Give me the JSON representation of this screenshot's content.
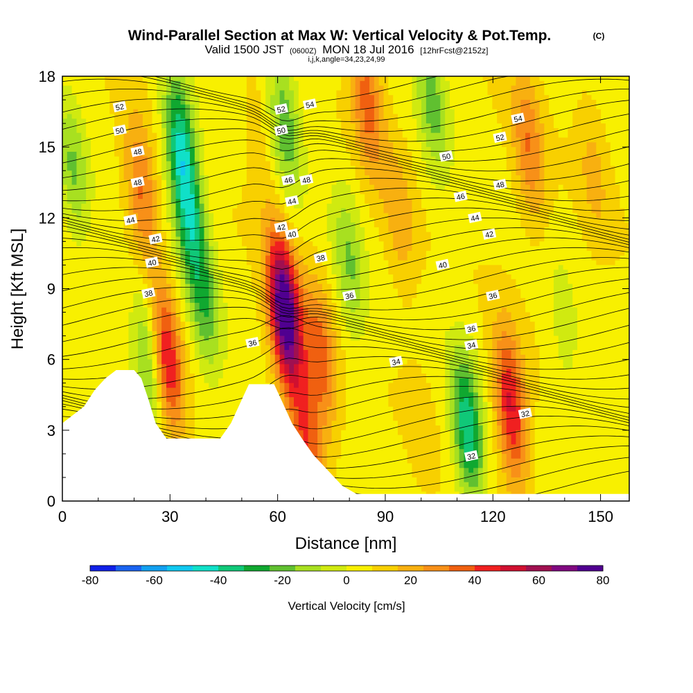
{
  "chart_data": {
    "type": "heatmap",
    "title": "Wind-Parallel Section at Max W: Vertical Velocity & Pot.Temp.",
    "copyright": "(C)",
    "subtitle_valid": "Valid 1500 JST",
    "subtitle_utc": "(0600Z)",
    "subtitle_date": "MON 18 Jul 2016",
    "subtitle_fcst": "[12hrFcst@2152z]",
    "subtitle2": "i,j,k,angle=34,23,24,99",
    "xlabel": "Distance [nm]",
    "ylabel": "Height [Kft MSL]",
    "xlim": [
      0,
      158
    ],
    "ylim": [
      0,
      18
    ],
    "x_ticks": [
      "0",
      "30",
      "60",
      "90",
      "120",
      "150"
    ],
    "y_ticks": [
      "0",
      "3",
      "6",
      "9",
      "12",
      "15",
      "18"
    ],
    "colorbar": {
      "label": "Vertical Velocity [cm/s]",
      "range": [
        -80,
        80
      ],
      "tick_labels": [
        "-80",
        "-60",
        "-40",
        "-20",
        "0",
        "20",
        "40",
        "60",
        "80"
      ],
      "colors": [
        "#1020e8",
        "#1a63f0",
        "#12a0f0",
        "#10c8f0",
        "#10e0c8",
        "#10c878",
        "#10a830",
        "#60c030",
        "#a8e020",
        "#d0ea10",
        "#f8f000",
        "#f8d000",
        "#f8b010",
        "#f89018",
        "#f06010",
        "#f02020",
        "#d01030",
        "#a01050",
        "#800880",
        "#500090"
      ]
    },
    "velocity_centers": [
      {
        "x": 3,
        "y": 14,
        "w": -22
      },
      {
        "x": 33,
        "y": 15,
        "w": -45
      },
      {
        "x": 36,
        "y": 11.5,
        "w": -30
      },
      {
        "x": 40,
        "y": 8,
        "w": -22
      },
      {
        "x": 24,
        "y": 6,
        "w": -30
      },
      {
        "x": 22,
        "y": 13,
        "w": 28
      },
      {
        "x": 29,
        "y": 6,
        "w": 45
      },
      {
        "x": 62,
        "y": 8,
        "w": 80
      },
      {
        "x": 62,
        "y": 16,
        "w": -28
      },
      {
        "x": 55,
        "y": 15,
        "w": 8
      },
      {
        "x": 72,
        "y": 6,
        "w": 30
      },
      {
        "x": 68,
        "y": 2.5,
        "w": 32
      },
      {
        "x": 80,
        "y": 10,
        "w": -22
      },
      {
        "x": 85,
        "y": 17,
        "w": 30
      },
      {
        "x": 94,
        "y": 12,
        "w": 15
      },
      {
        "x": 103,
        "y": 17,
        "w": -25
      },
      {
        "x": 113,
        "y": 3,
        "w": -45
      },
      {
        "x": 125,
        "y": 4,
        "w": 45
      },
      {
        "x": 130,
        "y": 15,
        "w": 25
      },
      {
        "x": 148,
        "y": 14,
        "w": 12
      },
      {
        "x": 140,
        "y": 7,
        "w": -10
      },
      {
        "x": 100,
        "y": 3,
        "w": 5
      }
    ],
    "theta_contour_labels": [
      "32",
      "32",
      "34",
      "34",
      "36",
      "36",
      "36",
      "36",
      "38",
      "38",
      "40",
      "40",
      "40",
      "42",
      "42",
      "42",
      "44",
      "44",
      "44",
      "46",
      "46",
      "48",
      "48",
      "48",
      "48",
      "50",
      "50",
      "50",
      "52",
      "52",
      "52",
      "54",
      "54"
    ]
  }
}
